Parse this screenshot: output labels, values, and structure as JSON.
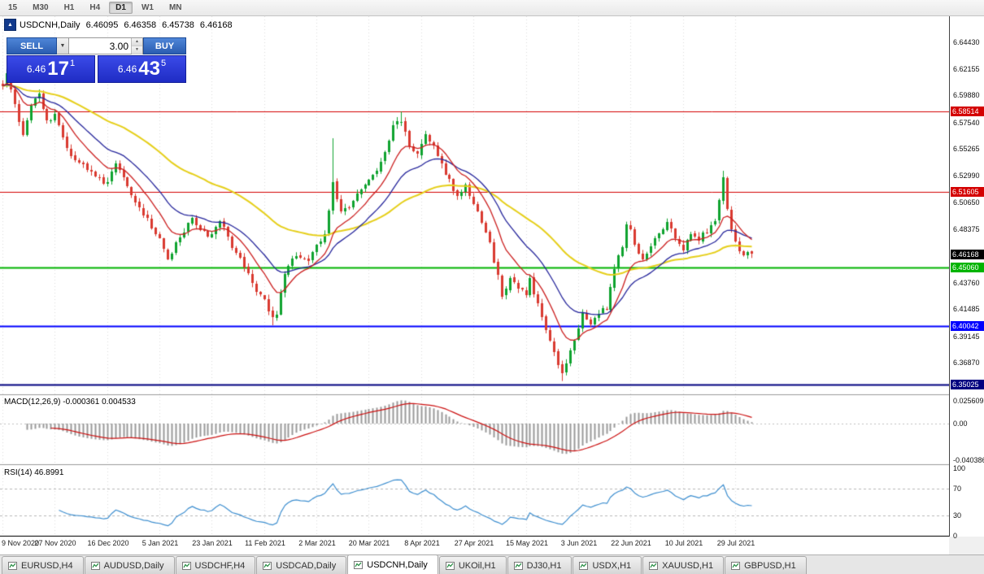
{
  "toolbar": {
    "timeframes": [
      "15",
      "M30",
      "H1",
      "H4",
      "D1",
      "W1",
      "MN"
    ],
    "active_timeframe": "D1"
  },
  "chart_header": {
    "symbol": "USDCNH,Daily",
    "open": "6.46095",
    "high": "6.46358",
    "low": "6.45738",
    "close": "6.46168"
  },
  "trade_panel": {
    "sell_label": "SELL",
    "buy_label": "BUY",
    "volume_value": "3.00",
    "sell_price_main": "6.46",
    "sell_price_pips": "17",
    "sell_price_point": "1",
    "buy_price_main": "6.46",
    "buy_price_pips": "43",
    "buy_price_point": "5"
  },
  "price_axis": {
    "ticks": [
      {
        "label": "6.64430",
        "value": 6.6443
      },
      {
        "label": "6.62155",
        "value": 6.62155
      },
      {
        "label": "6.59880",
        "value": 6.5988
      },
      {
        "label": "6.57540",
        "value": 6.5754
      },
      {
        "label": "6.55265",
        "value": 6.55265
      },
      {
        "label": "6.52990",
        "value": 6.5299
      },
      {
        "label": "6.50650",
        "value": 6.5065
      },
      {
        "label": "6.48375",
        "value": 6.48375
      },
      {
        "label": "6.43760",
        "value": 6.4376
      },
      {
        "label": "6.41485",
        "value": 6.41485
      },
      {
        "label": "6.39145",
        "value": 6.39145
      },
      {
        "label": "6.36870",
        "value": 6.3687
      }
    ],
    "current_price": {
      "label": "6.46168",
      "value": 6.46168,
      "bg": "#000000",
      "fg": "#ffffff"
    }
  },
  "levels": [
    {
      "label": "6.58514",
      "value": 6.58514,
      "color": "#d40000",
      "width": 1
    },
    {
      "label": "6.51605",
      "value": 6.51605,
      "color": "#d40000",
      "width": 1
    },
    {
      "label": "6.45060",
      "value": 6.4506,
      "color": "#00b400",
      "width": 2
    },
    {
      "label": "6.40042",
      "value": 6.40042,
      "color": "#0000ff",
      "width": 2
    },
    {
      "label": "6.35025",
      "value": 6.35025,
      "color": "#000080",
      "width": 2
    }
  ],
  "macd_panel": {
    "label": "MACD(12,26,9) -0.000361 0.004533",
    "axis": [
      {
        "label": "0.025609",
        "value": 0.025609
      },
      {
        "label": "0.00",
        "value": 0
      },
      {
        "label": "-0.040386",
        "value": -0.040386
      }
    ]
  },
  "rsi_panel": {
    "label": "RSI(14) 46.8991",
    "axis": [
      {
        "label": "100",
        "value": 100
      },
      {
        "label": "70",
        "value": 70
      },
      {
        "label": "30",
        "value": 30
      },
      {
        "label": "0",
        "value": 0
      }
    ],
    "dashed_levels": [
      70,
      30
    ]
  },
  "date_axis": [
    "9 Nov 2020",
    "27 Nov 2020",
    "16 Dec 2020",
    "5 Jan 2021",
    "23 Jan 2021",
    "11 Feb 2021",
    "2 Mar 2021",
    "20 Mar 2021",
    "8 Apr 2021",
    "27 Apr 2021",
    "15 May 2021",
    "3 Jun 2021",
    "22 Jun 2021",
    "10 Jul 2021",
    "29 Jul 2021"
  ],
  "tabs": [
    "EURUSD,H4",
    "AUDUSD,Daily",
    "USDCHF,H4",
    "USDCAD,Daily",
    "USDCNH,Daily",
    "UKOil,H1",
    "DJ30,H1",
    "USDX,H1",
    "XAUUSD,H1",
    "GBPUSD,H1"
  ],
  "active_tab": "USDCNH,Daily",
  "chart_data": {
    "type": "candlestick",
    "symbol": "USDCNH",
    "timeframe": "Daily",
    "bars_estimated": 187,
    "y_axis_range": [
      6.345,
      6.665
    ],
    "last_close": 6.46168,
    "x_labels": [
      "9 Nov 2020",
      "27 Nov 2020",
      "16 Dec 2020",
      "5 Jan 2021",
      "23 Jan 2021",
      "11 Feb 2021",
      "2 Mar 2021",
      "20 Mar 2021",
      "8 Apr 2021",
      "27 Apr 2021",
      "15 May 2021",
      "3 Jun 2021",
      "22 Jun 2021",
      "10 Jul 2021",
      "29 Jul 2021"
    ],
    "horizontal_lines": [
      6.58514,
      6.51605,
      6.4506,
      6.40042,
      6.35025
    ],
    "price_anchors": [
      [
        0,
        6.607
      ],
      [
        1,
        6.62
      ],
      [
        3,
        6.59
      ],
      [
        5,
        6.566
      ],
      [
        7,
        6.588
      ],
      [
        9,
        6.6
      ],
      [
        11,
        6.576
      ],
      [
        13,
        6.583
      ],
      [
        15,
        6.562
      ],
      [
        17,
        6.546
      ],
      [
        20,
        6.54
      ],
      [
        23,
        6.528
      ],
      [
        26,
        6.524
      ],
      [
        28,
        6.542
      ],
      [
        31,
        6.52
      ],
      [
        34,
        6.502
      ],
      [
        37,
        6.486
      ],
      [
        39,
        6.474
      ],
      [
        41,
        6.456
      ],
      [
        44,
        6.478
      ],
      [
        47,
        6.492
      ],
      [
        50,
        6.48
      ],
      [
        52,
        6.478
      ],
      [
        54,
        6.492
      ],
      [
        57,
        6.47
      ],
      [
        60,
        6.452
      ],
      [
        63,
        6.432
      ],
      [
        65,
        6.424
      ],
      [
        67,
        6.406
      ],
      [
        68,
        6.41
      ],
      [
        70,
        6.446
      ],
      [
        73,
        6.462
      ],
      [
        76,
        6.455
      ],
      [
        78,
        6.47
      ],
      [
        80,
        6.478
      ],
      [
        82,
        6.525
      ],
      [
        84,
        6.497
      ],
      [
        86,
        6.503
      ],
      [
        89,
        6.518
      ],
      [
        92,
        6.53
      ],
      [
        95,
        6.548
      ],
      [
        97,
        6.574
      ],
      [
        99,
        6.578
      ],
      [
        101,
        6.556
      ],
      [
        103,
        6.548
      ],
      [
        105,
        6.566
      ],
      [
        107,
        6.556
      ],
      [
        110,
        6.532
      ],
      [
        113,
        6.512
      ],
      [
        115,
        6.522
      ],
      [
        118,
        6.498
      ],
      [
        121,
        6.47
      ],
      [
        123,
        6.444
      ],
      [
        124,
        6.424
      ],
      [
        126,
        6.442
      ],
      [
        128,
        6.432
      ],
      [
        130,
        6.428
      ],
      [
        131,
        6.442
      ],
      [
        133,
        6.418
      ],
      [
        135,
        6.395
      ],
      [
        137,
        6.376
      ],
      [
        139,
        6.36
      ],
      [
        140,
        6.368
      ],
      [
        142,
        6.39
      ],
      [
        143,
        6.4
      ],
      [
        144,
        6.412
      ],
      [
        146,
        6.402
      ],
      [
        148,
        6.412
      ],
      [
        150,
        6.416
      ],
      [
        152,
        6.448
      ],
      [
        154,
        6.47
      ],
      [
        155,
        6.488
      ],
      [
        156,
        6.484
      ],
      [
        157,
        6.47
      ],
      [
        159,
        6.456
      ],
      [
        161,
        6.47
      ],
      [
        163,
        6.48
      ],
      [
        165,
        6.49
      ],
      [
        167,
        6.476
      ],
      [
        169,
        6.466
      ],
      [
        171,
        6.48
      ],
      [
        173,
        6.476
      ],
      [
        175,
        6.482
      ],
      [
        177,
        6.492
      ],
      [
        179,
        6.528
      ],
      [
        180,
        6.5
      ],
      [
        181,
        6.482
      ],
      [
        182,
        6.472
      ],
      [
        183,
        6.466
      ],
      [
        184,
        6.461
      ],
      [
        185,
        6.463
      ],
      [
        186,
        6.4617
      ]
    ],
    "spike_bars": [
      {
        "i": 82,
        "high": 6.562
      },
      {
        "i": 99,
        "high": 6.585
      },
      {
        "i": 67,
        "low": 6.401
      },
      {
        "i": 139,
        "low": 6.353
      },
      {
        "i": 179,
        "high": 6.534
      }
    ],
    "indicators": [
      {
        "type": "ma",
        "period": 10,
        "color": "#cc2020"
      },
      {
        "type": "ma",
        "period": 21,
        "color": "#26269c"
      },
      {
        "type": "ma",
        "period": 55,
        "color": "#e6cf1a"
      },
      {
        "type": "macd",
        "fast": 12,
        "slow": 26,
        "signal": 9,
        "shown_values": [
          -0.000361,
          0.004533
        ]
      },
      {
        "type": "rsi",
        "period": 14,
        "shown_value": 46.8991
      }
    ]
  }
}
